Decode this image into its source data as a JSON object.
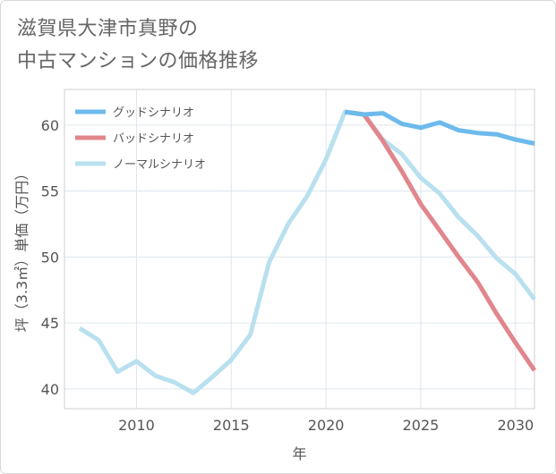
{
  "title": {
    "line1": "滋賀県大津市真野の",
    "line2": "中古マンションの価格推移"
  },
  "chart_data": {
    "type": "line",
    "xlabel": "年",
    "ylabel": "坪（3.3㎡）単価（万円）",
    "xlim": [
      2006.2,
      2031
    ],
    "ylim": [
      38.5,
      62.7
    ],
    "xticks": [
      2010,
      2015,
      2020,
      2025,
      2030
    ],
    "yticks": [
      40,
      45,
      50,
      55,
      60
    ],
    "grid": true,
    "legend_position": "top-left",
    "series": [
      {
        "name": "グッドシナリオ",
        "color": "#6dbaec",
        "x": [
          2021,
          2022,
          2023,
          2024,
          2025,
          2026,
          2027,
          2028,
          2029,
          2030,
          2031
        ],
        "y": [
          61.0,
          60.8,
          60.9,
          60.1,
          59.8,
          60.2,
          59.6,
          59.4,
          59.3,
          58.9,
          58.6
        ]
      },
      {
        "name": "バッドシナリオ",
        "color": "#e0868c",
        "x": [
          2021,
          2022,
          2023,
          2024,
          2025,
          2026,
          2027,
          2028,
          2029,
          2030,
          2031
        ],
        "y": [
          61.0,
          60.8,
          58.8,
          56.5,
          54.0,
          52.0,
          50.0,
          48.1,
          45.7,
          43.5,
          41.4
        ]
      },
      {
        "name": "ノーマルシナリオ",
        "color": "#b9e0ef",
        "x": [
          2007,
          2008,
          2009,
          2010,
          2011,
          2012,
          2013,
          2014,
          2015,
          2016,
          2017,
          2018,
          2019,
          2020,
          2021,
          2022,
          2023,
          2024,
          2025,
          2026,
          2027,
          2028,
          2029,
          2030,
          2031
        ],
        "y": [
          44.6,
          43.7,
          41.3,
          42.1,
          41.0,
          40.5,
          39.7,
          40.9,
          42.2,
          44.1,
          49.6,
          52.5,
          54.6,
          57.4,
          61.0,
          60.8,
          58.9,
          57.8,
          56.0,
          54.8,
          53.0,
          51.6,
          49.9,
          48.7,
          46.8
        ]
      }
    ]
  }
}
